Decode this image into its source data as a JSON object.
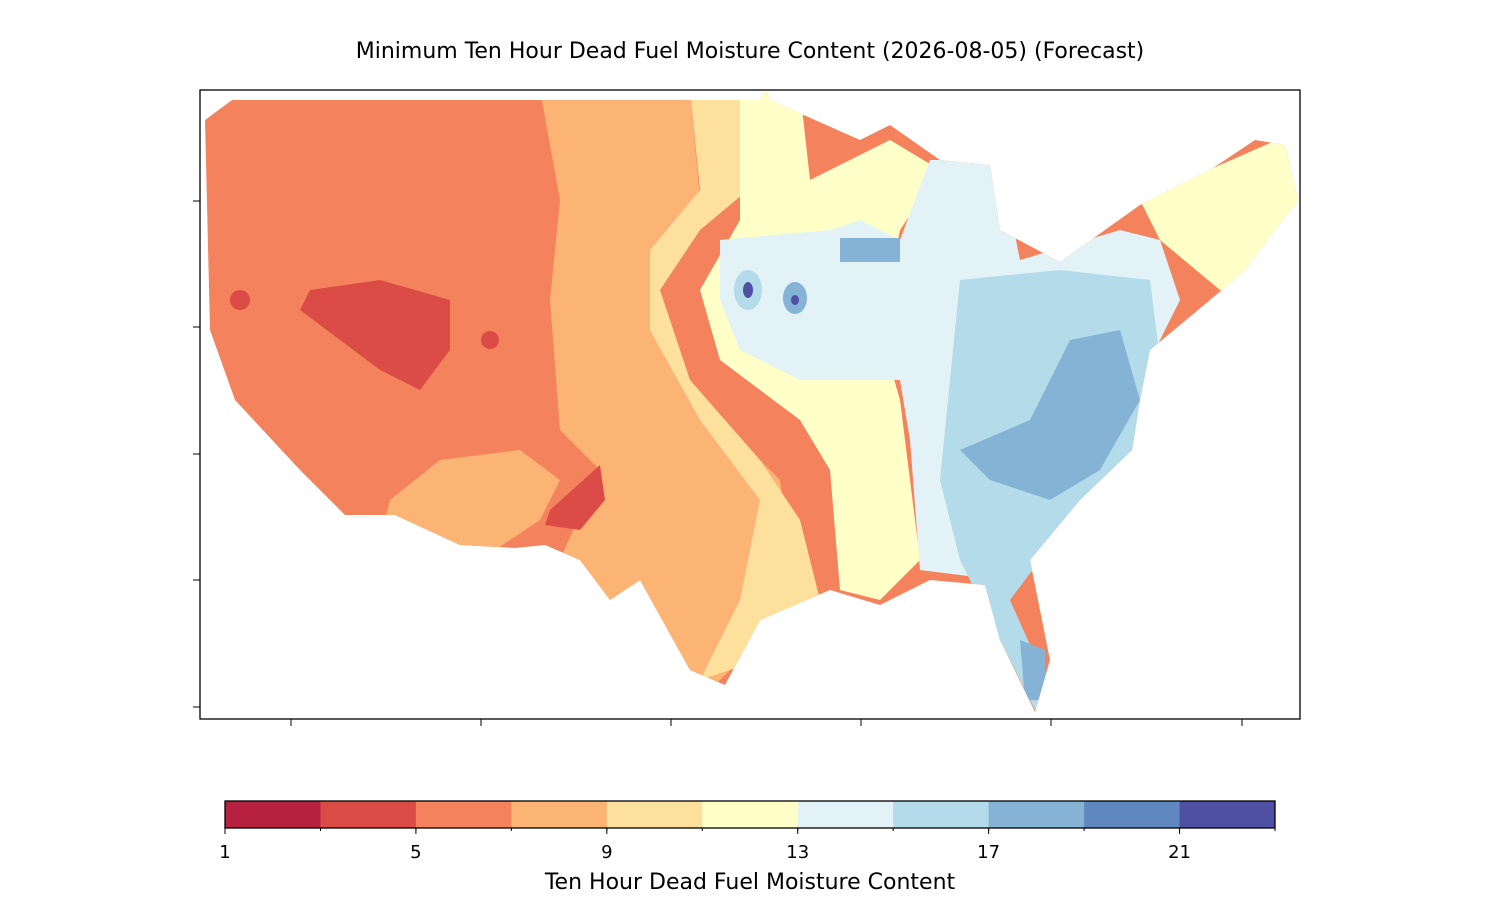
{
  "title": "Minimum Ten Hour Dead Fuel Moisture Content (2026-08-05) (Forecast)",
  "colorbar": {
    "label": "Ten Hour Dead Fuel Moisture Content",
    "boundaries": [
      1,
      3,
      5,
      7,
      9,
      11,
      13,
      15,
      17,
      19,
      21,
      23
    ],
    "colors": [
      "#b5213f",
      "#dc4c46",
      "#f4835d",
      "#fbb474",
      "#fde09b",
      "#ffffc8",
      "#e3f2f7",
      "#b3dbea",
      "#84b3d5",
      "#5f88c1",
      "#4f50a3"
    ],
    "ticks": [
      1,
      5,
      9,
      13,
      17,
      21
    ]
  }
}
